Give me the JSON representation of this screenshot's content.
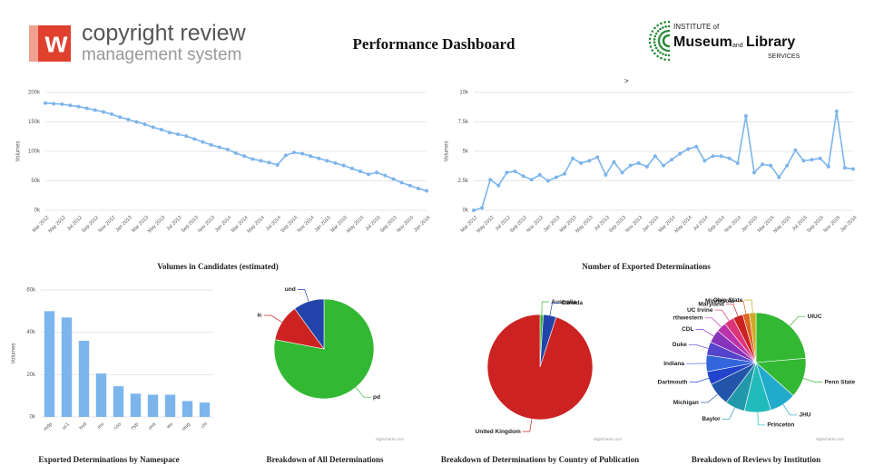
{
  "header": {
    "logo_letter": "w",
    "logo_line1": "copyright review",
    "logo_line2": "management system",
    "title": "Performance Dashboard",
    "marker": ">",
    "partner": {
      "line1": "INSTITUTE of",
      "museum": "Museum",
      "and": "and",
      "library": "Library",
      "services": "SERVICES"
    }
  },
  "chart_data": [
    {
      "type": "line",
      "title": "Volumes in Candidates (estimated)",
      "y_label": "Volumes",
      "color": "#7cb5ec",
      "grid": true,
      "categories": [
        "Mar 2012",
        null,
        "May 2012",
        null,
        "Jul 2012",
        null,
        "Sep 2012",
        null,
        "Nov 2012",
        null,
        "Jan 2013",
        null,
        "Mar 2013",
        null,
        "May 2013",
        null,
        "Jul 2013",
        null,
        "Sep 2013",
        null,
        "Nov 2013",
        null,
        "Jan 2014",
        null,
        "Mar 2014",
        null,
        "May 2014",
        null,
        "Jul 2014",
        null,
        "Sep 2014",
        null,
        "Nov 2014",
        null,
        "Jan 2015",
        null,
        "Mar 2015",
        null,
        "May 2015",
        null,
        "Jul 2015",
        null,
        "Sep 2015",
        null,
        "Nov 2015",
        null,
        "Jan 2016"
      ],
      "values": [
        182000,
        181000,
        180000,
        178000,
        176000,
        173000,
        170000,
        167000,
        163000,
        158000,
        154000,
        150000,
        146000,
        141000,
        137000,
        132000,
        129000,
        126000,
        121000,
        116000,
        111000,
        107000,
        103000,
        97000,
        92000,
        87000,
        84000,
        81000,
        77000,
        93000,
        98000,
        96000,
        92000,
        88000,
        84000,
        80000,
        76000,
        71000,
        66000,
        61000,
        64000,
        59000,
        53000,
        47000,
        42000,
        37000,
        33000
      ],
      "ylim": [
        0,
        200000
      ],
      "yticks": [
        {
          "value": 0,
          "label": "0k"
        },
        {
          "value": 50000,
          "label": "50k"
        },
        {
          "value": 100000,
          "label": "100k"
        },
        {
          "value": 150000,
          "label": "150k"
        },
        {
          "value": 200000,
          "label": "200k"
        }
      ]
    },
    {
      "type": "line",
      "title": "Number of Exported Determinations",
      "y_label": "Volumes",
      "color": "#7cb5ec",
      "grid": true,
      "categories": [
        "Mar 2012",
        null,
        "May 2012",
        null,
        "Jul 2012",
        null,
        "Sep 2012",
        null,
        "Nov 2012",
        null,
        "Jan 2013",
        null,
        "Mar 2013",
        null,
        "May 2013",
        null,
        "Jul 2013",
        null,
        "Sep 2013",
        null,
        "Nov 2013",
        null,
        "Jan 2014",
        null,
        "Mar 2014",
        null,
        "May 2014",
        null,
        "Jul 2014",
        null,
        "Sep 2014",
        null,
        "Nov 2014",
        null,
        "Jan 2015",
        null,
        "Mar 2015",
        null,
        "May 2015",
        null,
        "Jul 2015",
        null,
        "Sep 2015",
        null,
        "Nov 2015",
        null,
        "Jan 2016"
      ],
      "values": [
        0,
        200,
        2600,
        2100,
        3200,
        3300,
        2900,
        2600,
        3000,
        2500,
        2800,
        3100,
        4400,
        4000,
        4200,
        4500,
        3000,
        4100,
        3200,
        3800,
        4000,
        3700,
        4600,
        3800,
        4300,
        4800,
        5200,
        5400,
        4200,
        4600,
        4600,
        4400,
        4000,
        8000,
        3200,
        3900,
        3800,
        2800,
        3800,
        5100,
        4200,
        4300,
        4400,
        3700,
        8400,
        3600,
        3500
      ],
      "ylim": [
        0,
        10000
      ],
      "yticks": [
        {
          "value": 0,
          "label": "0k"
        },
        {
          "value": 2500,
          "label": "2.5k"
        },
        {
          "value": 5000,
          "label": "5k"
        },
        {
          "value": 7500,
          "label": "7.5k"
        },
        {
          "value": 10000,
          "label": "10k"
        }
      ]
    },
    {
      "type": "bar",
      "title": "Exported Determinations by Namespace",
      "y_label": "Volumes",
      "color": "#7cb5ec",
      "grid": true,
      "categories": [
        "mdp",
        "uc1",
        "hvd",
        "inu",
        "coo",
        "nyp",
        "uva",
        "wu",
        "uiug",
        "chi"
      ],
      "values": [
        50000,
        47000,
        36000,
        20500,
        14500,
        11000,
        10500,
        10500,
        7500,
        6800
      ],
      "ylim": [
        0,
        60000
      ],
      "yticks": [
        {
          "value": 0,
          "label": "0k"
        },
        {
          "value": 20000,
          "label": "20k"
        },
        {
          "value": 40000,
          "label": "40k"
        },
        {
          "value": 60000,
          "label": "60k"
        }
      ]
    },
    {
      "type": "pie",
      "title": "Breakdown of All Determinations",
      "credit": "Highcharts.com",
      "categories": [
        "pd",
        "ic",
        "und"
      ],
      "values": [
        78,
        12,
        10
      ],
      "colors": [
        "#33b833",
        "#cc2222",
        "#2244aa"
      ]
    },
    {
      "type": "pie",
      "title": "Breakdown of Determinations by Country of Publication",
      "credit": "Highcharts.com",
      "categories": [
        "Australia",
        "Canada",
        "United Kingdom"
      ],
      "values": [
        1,
        4,
        95
      ],
      "colors": [
        "#33b833",
        "#2244aa",
        "#cc2222"
      ]
    },
    {
      "type": "pie",
      "title": "Breakdown of Reviews by Institution",
      "credit": "Highcharts.com",
      "categories": [
        "UIUC",
        "Penn State",
        "JHU",
        "Princeton",
        "Baylor",
        "Michigan",
        "Dartmouth",
        "Indiana",
        "Duke",
        "CDL",
        "rthwestern",
        "UC Irvine",
        "Maryland",
        "Minnesota",
        "Ohio State"
      ],
      "values": [
        22,
        12,
        8,
        8,
        6,
        7,
        4,
        5,
        4,
        4,
        3,
        3,
        3,
        2,
        2
      ],
      "colors": [
        "#33b833",
        "#33b833",
        "#22aacc",
        "#22bbbb",
        "#2299aa",
        "#2255aa",
        "#2244cc",
        "#3366dd",
        "#5544cc",
        "#8833bb",
        "#bb33aa",
        "#dd3377",
        "#cc2222",
        "#dd6622",
        "#ccaa22"
      ]
    }
  ]
}
